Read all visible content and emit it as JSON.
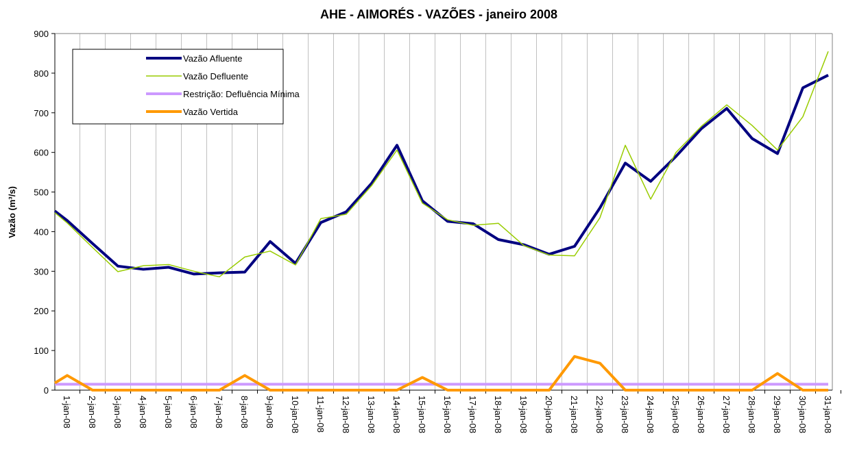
{
  "chart_data": {
    "type": "line",
    "title": "AHE - AIMORÉS - VAZÕES - janeiro 2008",
    "y_label": "Vazão (m³/s)",
    "categories": [
      null,
      "1-jan-08",
      "2-jan-08",
      "3-jan-08",
      "4-jan-08",
      "5-jan-08",
      "6-jan-08",
      "7-jan-08",
      "8-jan-08",
      "9-jan-08",
      "10-jan-08",
      "11-jan-08",
      "12-jan-08",
      "13-jan-08",
      "14-jan-08",
      "15-jan-08",
      "16-jan-08",
      "17-jan-08",
      "18-jan-08",
      "19-jan-08",
      "20-jan-08",
      "21-jan-08",
      "22-jan-08",
      "23-jan-08",
      "24-jan-08",
      "25-jan-08",
      "26-jan-08",
      "27-jan-08",
      "28-jan-08",
      "29-jan-08",
      "30-jan-08",
      "31-jan-08"
    ],
    "series": [
      {
        "name": "Vazão Afluente",
        "color": "#000080",
        "values": [
          452,
          428,
          370,
          313,
          305,
          310,
          293,
          296,
          298,
          375,
          320,
          423,
          450,
          522,
          618,
          478,
          426,
          420,
          380,
          367,
          343,
          363,
          460,
          573,
          527,
          590,
          660,
          711,
          635,
          597,
          763,
          795
        ]
      },
      {
        "name": "Vazão Defluente",
        "color": "#99cc00",
        "values": [
          448,
          422,
          360,
          299,
          314,
          317,
          300,
          286,
          336,
          351,
          316,
          433,
          444,
          516,
          606,
          472,
          430,
          416,
          421,
          365,
          341,
          339,
          435,
          618,
          482,
          600,
          666,
          720,
          668,
          606,
          690,
          855
        ]
      },
      {
        "name": "Restrição: Defluência Mínima",
        "color": "#cc99ff",
        "values": [
          15,
          15,
          15,
          15,
          15,
          15,
          15,
          15,
          15,
          15,
          15,
          15,
          15,
          15,
          15,
          15,
          15,
          15,
          15,
          15,
          15,
          15,
          15,
          15,
          15,
          15,
          15,
          15,
          15,
          15,
          15,
          15
        ]
      },
      {
        "name": "Vazão Vertida",
        "color": "#ff9900",
        "values": [
          18,
          37,
          0,
          0,
          0,
          0,
          0,
          0,
          37,
          0,
          0,
          0,
          0,
          0,
          0,
          32,
          0,
          0,
          0,
          0,
          0,
          85,
          68,
          0,
          0,
          0,
          0,
          0,
          0,
          42,
          0,
          0
        ]
      }
    ],
    "ylim": [
      0,
      900
    ],
    "yticks": [
      0,
      100,
      200,
      300,
      400,
      500,
      600,
      700,
      800,
      900
    ],
    "grid": false
  }
}
